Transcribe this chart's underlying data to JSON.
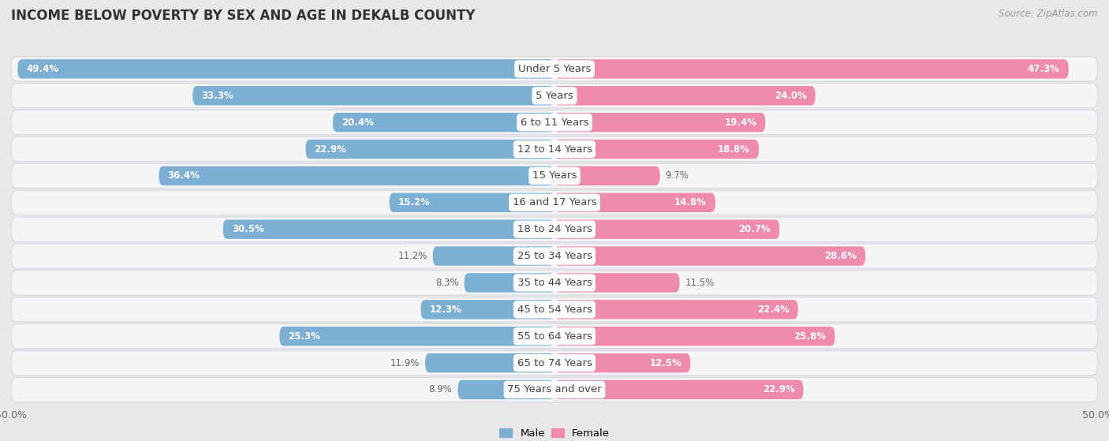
{
  "title": "INCOME BELOW POVERTY BY SEX AND AGE IN DEKALB COUNTY",
  "source": "Source: ZipAtlas.com",
  "categories": [
    "Under 5 Years",
    "5 Years",
    "6 to 11 Years",
    "12 to 14 Years",
    "15 Years",
    "16 and 17 Years",
    "18 to 24 Years",
    "25 to 34 Years",
    "35 to 44 Years",
    "45 to 54 Years",
    "55 to 64 Years",
    "65 to 74 Years",
    "75 Years and over"
  ],
  "male_values": [
    49.4,
    33.3,
    20.4,
    22.9,
    36.4,
    15.2,
    30.5,
    11.2,
    8.3,
    12.3,
    25.3,
    11.9,
    8.9
  ],
  "female_values": [
    47.3,
    24.0,
    19.4,
    18.8,
    9.7,
    14.8,
    20.7,
    28.6,
    11.5,
    22.4,
    25.8,
    12.5,
    22.9
  ],
  "male_color": "#7bafd4",
  "female_color": "#f08aaa",
  "male_label": "Male",
  "female_label": "Female",
  "male_text_color": "#ffffff",
  "female_text_color": "#ffffff",
  "axis_limit": 50.0,
  "bg_color": "#e8e8e8",
  "row_bg_color": "#f5f5f8",
  "row_border_color": "#d8d8e0",
  "font_size_title": 12,
  "font_size_labels": 9.5,
  "font_size_axis": 9,
  "font_size_values": 8.5,
  "font_size_source": 8.5
}
